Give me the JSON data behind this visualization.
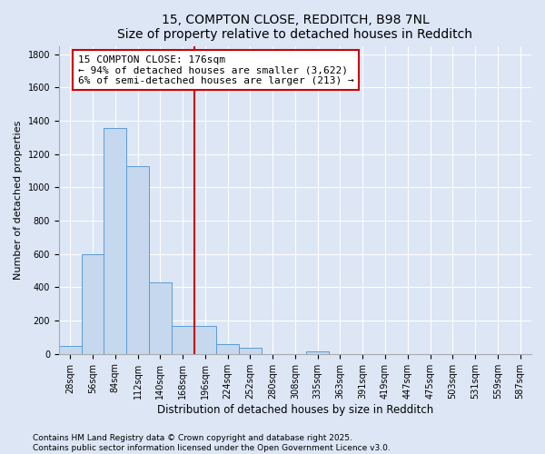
{
  "title": "15, COMPTON CLOSE, REDDITCH, B98 7NL",
  "subtitle": "Size of property relative to detached houses in Redditch",
  "xlabel": "Distribution of detached houses by size in Redditch",
  "ylabel": "Number of detached properties",
  "footnote1": "Contains HM Land Registry data © Crown copyright and database right 2025.",
  "footnote2": "Contains public sector information licensed under the Open Government Licence v3.0.",
  "xlabels": [
    "28sqm",
    "56sqm",
    "84sqm",
    "112sqm",
    "140sqm",
    "168sqm",
    "196sqm",
    "224sqm",
    "252sqm",
    "280sqm",
    "308sqm",
    "335sqm",
    "363sqm",
    "391sqm",
    "419sqm",
    "447sqm",
    "475sqm",
    "503sqm",
    "531sqm",
    "559sqm",
    "587sqm"
  ],
  "bar_values": [
    50,
    600,
    1355,
    1130,
    430,
    170,
    170,
    60,
    35,
    0,
    0,
    15,
    0,
    0,
    0,
    0,
    0,
    0,
    0,
    0,
    0
  ],
  "bar_color": "#c6d8ee",
  "bar_edge_color": "#5b9bd5",
  "ylim": [
    0,
    1850
  ],
  "yticks": [
    0,
    200,
    400,
    600,
    800,
    1000,
    1200,
    1400,
    1600,
    1800
  ],
  "vline_x_idx": 6,
  "vline_color": "#cc0000",
  "ann_line1": "15 COMPTON CLOSE: 176sqm",
  "ann_line2": "← 94% of detached houses are smaller (3,622)",
  "ann_line3": "6% of semi-detached houses are larger (213) →",
  "box_edge_color": "#cc0000",
  "background_color": "#dce6f5",
  "plot_bg_color": "#dce6f5",
  "grid_color": "#ffffff",
  "title_fontsize": 10,
  "xlabel_fontsize": 8.5,
  "ylabel_fontsize": 8,
  "tick_fontsize": 7,
  "annotation_fontsize": 8,
  "footnote_fontsize": 6.5
}
